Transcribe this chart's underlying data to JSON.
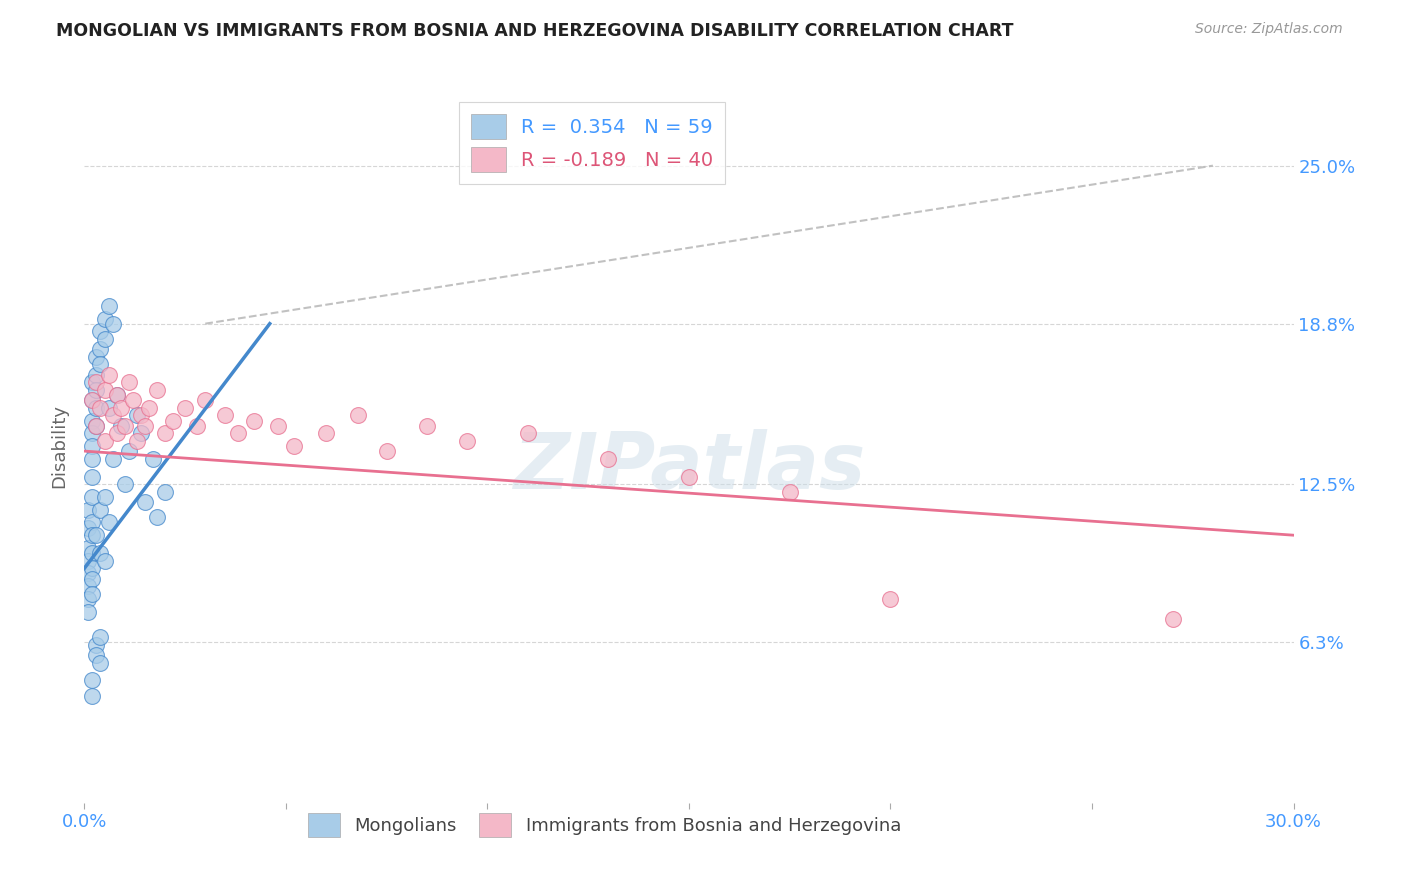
{
  "title": "MONGOLIAN VS IMMIGRANTS FROM BOSNIA AND HERZEGOVINA DISABILITY CORRELATION CHART",
  "source": "Source: ZipAtlas.com",
  "ylabel": "Disability",
  "xlim": [
    0.0,
    0.3
  ],
  "ylim": [
    0.0,
    0.28
  ],
  "ytick_labels": [
    "6.3%",
    "12.5%",
    "18.8%",
    "25.0%"
  ],
  "ytick_values": [
    0.063,
    0.125,
    0.188,
    0.25
  ],
  "color_blue": "#a8cce8",
  "color_pink": "#f4b8c8",
  "color_blue_line": "#4488cc",
  "color_pink_line": "#e87090",
  "color_dashed": "#bbbbbb",
  "watermark": "ZIPatlas",
  "mongolians_x": [
    0.001,
    0.001,
    0.001,
    0.001,
    0.001,
    0.001,
    0.001,
    0.001,
    0.002,
    0.002,
    0.002,
    0.002,
    0.002,
    0.002,
    0.002,
    0.002,
    0.002,
    0.002,
    0.002,
    0.002,
    0.002,
    0.002,
    0.003,
    0.003,
    0.003,
    0.003,
    0.003,
    0.003,
    0.004,
    0.004,
    0.004,
    0.004,
    0.004,
    0.005,
    0.005,
    0.005,
    0.005,
    0.006,
    0.006,
    0.006,
    0.007,
    0.007,
    0.008,
    0.009,
    0.01,
    0.011,
    0.013,
    0.014,
    0.015,
    0.017,
    0.018,
    0.02,
    0.003,
    0.003,
    0.004,
    0.004,
    0.002,
    0.002
  ],
  "mongolians_y": [
    0.115,
    0.108,
    0.1,
    0.095,
    0.09,
    0.085,
    0.08,
    0.075,
    0.165,
    0.158,
    0.15,
    0.145,
    0.14,
    0.135,
    0.128,
    0.12,
    0.11,
    0.105,
    0.098,
    0.092,
    0.088,
    0.082,
    0.175,
    0.168,
    0.162,
    0.155,
    0.148,
    0.105,
    0.185,
    0.178,
    0.172,
    0.115,
    0.098,
    0.19,
    0.182,
    0.12,
    0.095,
    0.195,
    0.155,
    0.11,
    0.188,
    0.135,
    0.16,
    0.148,
    0.125,
    0.138,
    0.152,
    0.145,
    0.118,
    0.135,
    0.112,
    0.122,
    0.062,
    0.058,
    0.065,
    0.055,
    0.048,
    0.042
  ],
  "bosnia_x": [
    0.002,
    0.003,
    0.003,
    0.004,
    0.005,
    0.005,
    0.006,
    0.007,
    0.008,
    0.008,
    0.009,
    0.01,
    0.011,
    0.012,
    0.013,
    0.014,
    0.015,
    0.016,
    0.018,
    0.02,
    0.022,
    0.025,
    0.028,
    0.03,
    0.035,
    0.038,
    0.042,
    0.048,
    0.052,
    0.06,
    0.068,
    0.075,
    0.085,
    0.095,
    0.11,
    0.13,
    0.15,
    0.175,
    0.2,
    0.27
  ],
  "bosnia_y": [
    0.158,
    0.165,
    0.148,
    0.155,
    0.162,
    0.142,
    0.168,
    0.152,
    0.145,
    0.16,
    0.155,
    0.148,
    0.165,
    0.158,
    0.142,
    0.152,
    0.148,
    0.155,
    0.162,
    0.145,
    0.15,
    0.155,
    0.148,
    0.158,
    0.152,
    0.145,
    0.15,
    0.148,
    0.14,
    0.145,
    0.152,
    0.138,
    0.148,
    0.142,
    0.145,
    0.135,
    0.128,
    0.122,
    0.08,
    0.072
  ],
  "blue_line_x": [
    0.0,
    0.046
  ],
  "blue_line_y": [
    0.092,
    0.188
  ],
  "pink_line_x": [
    0.0,
    0.3
  ],
  "pink_line_y": [
    0.138,
    0.105
  ],
  "dash_line_x": [
    0.03,
    0.28
  ],
  "dash_line_y": [
    0.188,
    0.25
  ]
}
